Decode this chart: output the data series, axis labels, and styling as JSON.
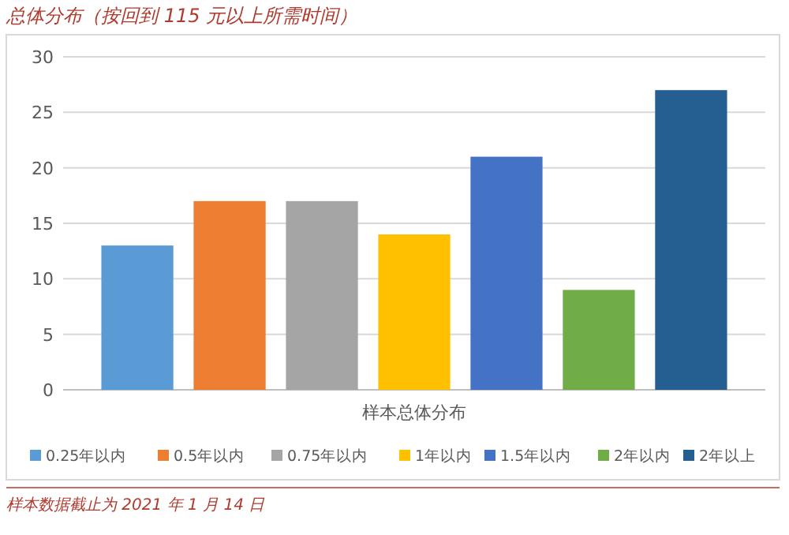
{
  "chart_data": {
    "type": "bar",
    "title": "总体分布（按回到 115 元以上所需时间）",
    "categories": [
      "样本总体分布"
    ],
    "series": [
      {
        "name": "0.25年以内",
        "color": "#5b9bd5",
        "values": [
          13
        ]
      },
      {
        "name": "0.5年以内",
        "color": "#ed7d31",
        "values": [
          17
        ]
      },
      {
        "name": "0.75年以内",
        "color": "#a5a5a5",
        "values": [
          17
        ]
      },
      {
        "name": "1年以内",
        "color": "#ffc000",
        "values": [
          14
        ]
      },
      {
        "name": "1.5年以内",
        "color": "#4472c4",
        "values": [
          21
        ]
      },
      {
        "name": "2年以内",
        "color": "#70ad47",
        "values": [
          9
        ]
      },
      {
        "name": "2年以上",
        "color": "#255e91",
        "values": [
          27
        ]
      }
    ],
    "ylim": [
      0,
      30
    ],
    "yticks": [
      0,
      5,
      10,
      15,
      20,
      25,
      30
    ],
    "grid": "y",
    "legend": "bottom",
    "annotations": [
      "样本数据截止为 2021 年 1 月 14 日"
    ]
  }
}
